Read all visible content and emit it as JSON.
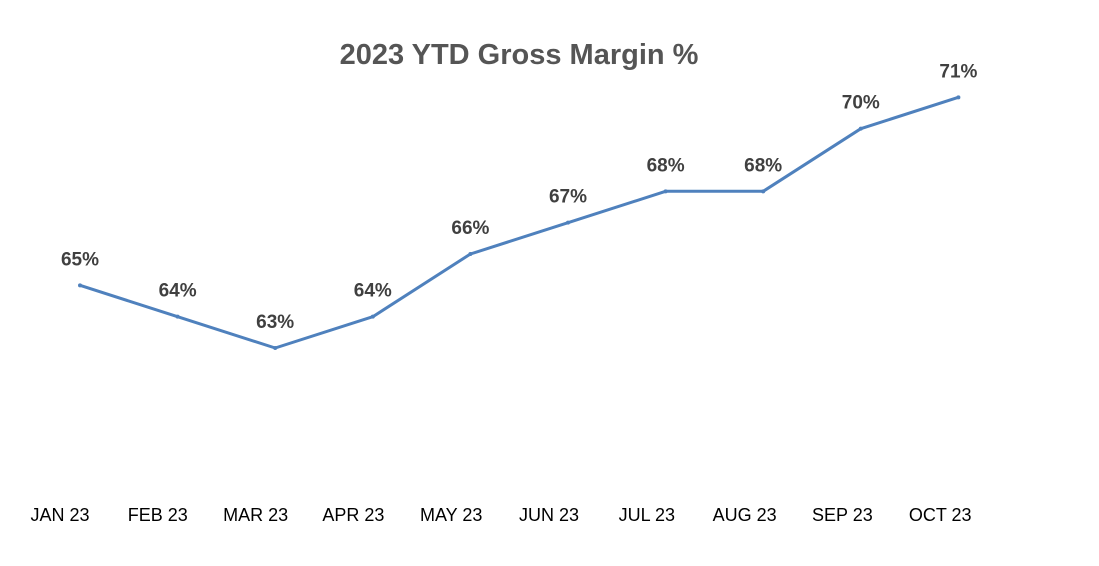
{
  "chart_data": {
    "type": "line",
    "title": "2023 YTD Gross Margin %",
    "xlabel": "",
    "ylabel": "",
    "categories": [
      "JAN 23",
      "FEB 23",
      "MAR 23",
      "APR 23",
      "MAY 23",
      "JUN 23",
      "JUL 23",
      "AUG 23",
      "SEP 23",
      "OCT 23"
    ],
    "series": [
      {
        "values": [
          65,
          64,
          63,
          64,
          66,
          67,
          68,
          68,
          70,
          71
        ],
        "labels": [
          "65%",
          "64%",
          "63%",
          "64%",
          "66%",
          "67%",
          "68%",
          "68%",
          "70%",
          "71%"
        ],
        "color": "#4f81bd"
      }
    ],
    "ylim": [
      60,
      72
    ],
    "grid": false,
    "legend": "none",
    "axes_visible": false
  }
}
